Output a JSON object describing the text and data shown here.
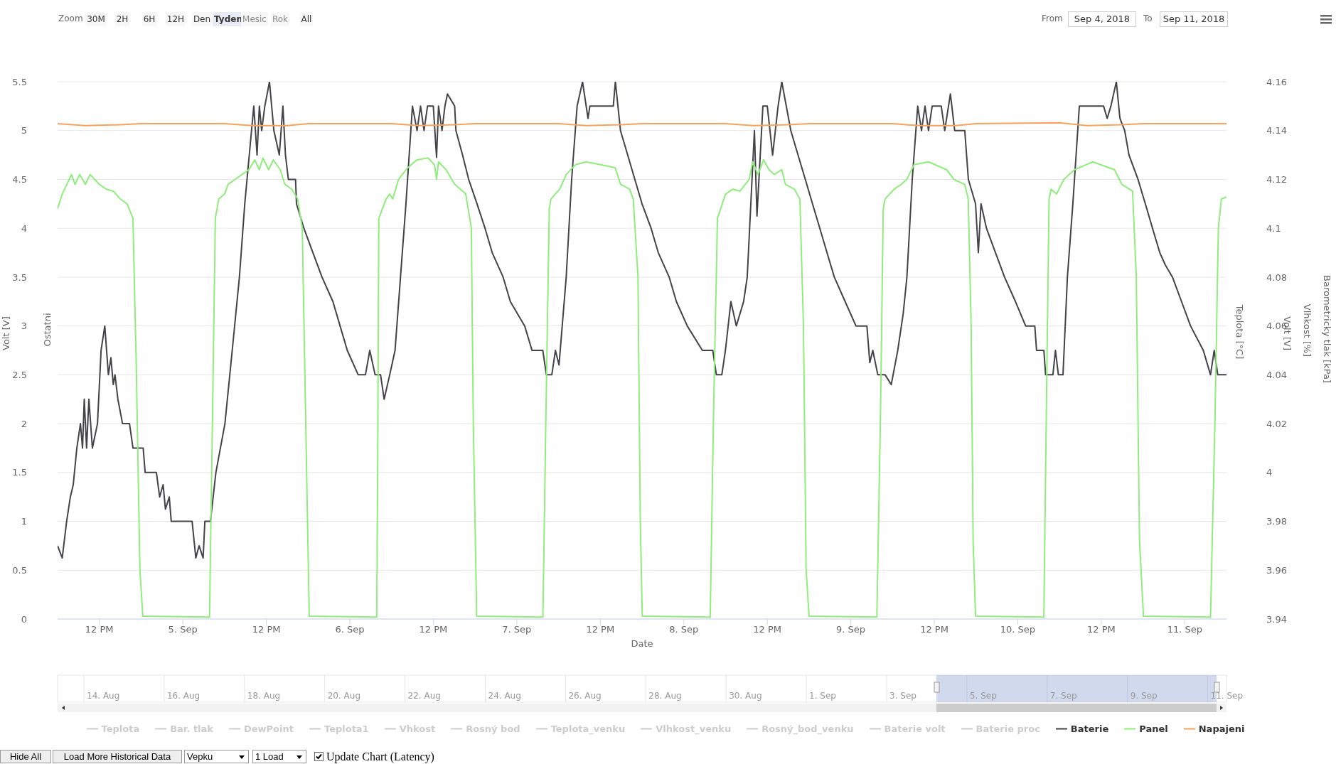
{
  "chart_data": {
    "type": "line",
    "xlabel": "Date",
    "ylabel": "Volt [V]",
    "y2label": "Volt [V]",
    "xlim": [
      "2018-09-04T06:00",
      "2018-09-11T06:00"
    ],
    "xticks": [
      {
        "value": "2018-09-04T12:00",
        "label": "12 PM"
      },
      {
        "value": "2018-09-05T00:00",
        "label": "5. Sep"
      },
      {
        "value": "2018-09-05T12:00",
        "label": "12 PM"
      },
      {
        "value": "2018-09-06T00:00",
        "label": "6. Sep"
      },
      {
        "value": "2018-09-06T12:00",
        "label": "12 PM"
      },
      {
        "value": "2018-09-07T00:00",
        "label": "7. Sep"
      },
      {
        "value": "2018-09-07T12:00",
        "label": "12 PM"
      },
      {
        "value": "2018-09-08T00:00",
        "label": "8. Sep"
      },
      {
        "value": "2018-09-08T12:00",
        "label": "12 PM"
      },
      {
        "value": "2018-09-09T00:00",
        "label": "9. Sep"
      },
      {
        "value": "2018-09-09T12:00",
        "label": "12 PM"
      },
      {
        "value": "2018-09-10T00:00",
        "label": "10. Sep"
      },
      {
        "value": "2018-09-10T12:00",
        "label": "12 PM"
      },
      {
        "value": "2018-09-11T00:00",
        "label": "11. Sep"
      }
    ],
    "ylim": [
      0,
      5.5
    ],
    "yticks": [
      0,
      0.5,
      1,
      1.5,
      2,
      2.5,
      3,
      3.5,
      4,
      4.5,
      5,
      5.5
    ],
    "y2lim": [
      3.94,
      4.16
    ],
    "y2ticks": [
      3.94,
      3.96,
      3.98,
      4,
      4.02,
      4.04,
      4.06,
      4.08,
      4.1,
      4.12,
      4.14,
      4.16
    ],
    "grid": "y",
    "legend": "bottom",
    "marker": "none",
    "annotations": [
      "Ostatni",
      "Teplota [°C]",
      "Vlhkost [%]",
      "Barometricky tlak [kPa]",
      "Zoom",
      "30M",
      "2H",
      "6H",
      "12H",
      "Den",
      "Tyden",
      "Mesic",
      "Rok",
      "All",
      "From",
      "Sep 4, 2018",
      "To",
      "Sep 11, 2018",
      "14. Aug",
      "16. Aug",
      "18. Aug",
      "20. Aug",
      "22. Aug",
      "24. Aug",
      "26. Aug",
      "28. Aug",
      "30. Aug",
      "1. Sep",
      "3. Sep",
      "5. Sep",
      "7. Sep",
      "9. Sep",
      "11. Sep",
      "Hide All",
      "Load More Historical Data",
      "Vepku",
      "1 Load",
      "Update Chart (Latency)"
    ],
    "series": [
      {
        "name": "Teplota",
        "color": "#cccccc"
      },
      {
        "name": "Bar. tlak",
        "color": "#cccccc"
      },
      {
        "name": "DewPoint",
        "color": "#cccccc"
      },
      {
        "name": "Teplota1",
        "color": "#cccccc"
      },
      {
        "name": "Vhkost",
        "color": "#cccccc"
      },
      {
        "name": "Rosný bod",
        "color": "#cccccc"
      },
      {
        "name": "Teplota_venku",
        "color": "#cccccc"
      },
      {
        "name": "Vlhkost_venku",
        "color": "#cccccc"
      },
      {
        "name": "Rosný_bod_venku",
        "color": "#cccccc"
      },
      {
        "name": "Baterie volt",
        "color": "#cccccc"
      },
      {
        "name": "Baterie proc",
        "color": "#cccccc"
      },
      {
        "name": "Baterie",
        "color": "#434348",
        "axis": "y2",
        "x": [
          "2018-09-04T06:00",
          "2018-09-04T06:40",
          "2018-09-04T07:18",
          "2018-09-04T07:50",
          "2018-09-04T08:15",
          "2018-09-04T08:46",
          "2018-09-04T09:17",
          "2018-09-04T09:35",
          "2018-09-04T09:50",
          "2018-09-04T10:10",
          "2018-09-04T10:30",
          "2018-09-04T11:00",
          "2018-09-04T11:44",
          "2018-09-04T12:15",
          "2018-09-04T12:47",
          "2018-09-04T13:18",
          "2018-09-04T13:40",
          "2018-09-04T14:00",
          "2018-09-04T14:15",
          "2018-09-04T14:40",
          "2018-09-04T15:20",
          "2018-09-04T16:20",
          "2018-09-04T16:50",
          "2018-09-04T18:18",
          "2018-09-04T18:35",
          "2018-09-04T20:12",
          "2018-09-04T20:40",
          "2018-09-04T21:10",
          "2018-09-04T21:30",
          "2018-09-04T22:03",
          "2018-09-04T22:20",
          "2018-09-05T01:20",
          "2018-09-05T01:52",
          "2018-09-05T02:20",
          "2018-09-05T02:55",
          "2018-09-05T03:10",
          "2018-09-05T03:58",
          "2018-09-05T04:45",
          "2018-09-05T06:03",
          "2018-09-05T07:06",
          "2018-09-05T08:08",
          "2018-09-05T08:54",
          "2018-09-05T09:31",
          "2018-09-05T10:12",
          "2018-09-05T10:40",
          "2018-09-05T11:00",
          "2018-09-05T11:20",
          "2018-09-05T11:47",
          "2018-09-05T12:27",
          "2018-09-05T13:05",
          "2018-09-05T13:52",
          "2018-09-05T14:23",
          "2018-09-05T14:45",
          "2018-09-05T15:10",
          "2018-09-05T16:12",
          "2018-09-05T16:20",
          "2018-09-05T17:24",
          "2018-09-05T18:42",
          "2018-09-05T20:00",
          "2018-09-05T21:34",
          "2018-09-05T22:36",
          "2018-09-05T23:38",
          "2018-09-06T01:12",
          "2018-09-06T02:15",
          "2018-09-06T02:52",
          "2018-09-06T03:38",
          "2018-09-06T04:25",
          "2018-09-06T04:56",
          "2018-09-06T05:44",
          "2018-09-06T06:30",
          "2018-09-06T07:17",
          "2018-09-06T08:04",
          "2018-09-06T09:00",
          "2018-09-06T09:40",
          "2018-09-06T10:10",
          "2018-09-06T10:40",
          "2018-09-06T11:10",
          "2018-09-06T12:00",
          "2018-09-06T12:28",
          "2018-09-06T12:45",
          "2018-09-06T13:15",
          "2018-09-06T13:40",
          "2018-09-06T14:02",
          "2018-09-06T15:04",
          "2018-09-06T15:15",
          "2018-09-06T16:12",
          "2018-09-06T17:05",
          "2018-09-06T18:17",
          "2018-09-06T19:26",
          "2018-09-06T20:28",
          "2018-09-06T22:02",
          "2018-09-06T23:04",
          "2018-09-07T01:08",
          "2018-09-07T02:11",
          "2018-09-07T03:44",
          "2018-09-07T04:15",
          "2018-09-07T05:02",
          "2018-09-07T05:33",
          "2018-09-07T06:04",
          "2018-09-07T07:06",
          "2018-09-07T07:53",
          "2018-09-07T08:40",
          "2018-09-07T09:27",
          "2018-09-07T10:14",
          "2018-09-07T10:30",
          "2018-09-07T13:52",
          "2018-09-07T14:10",
          "2018-09-07T14:54",
          "2018-09-07T15:56",
          "2018-09-07T16:58",
          "2018-09-07T18:00",
          "2018-09-07T19:18",
          "2018-09-07T20:20",
          "2018-09-07T21:54",
          "2018-09-07T22:56",
          "2018-09-08T00:30",
          "2018-09-08T02:40",
          "2018-09-08T04:10",
          "2018-09-08T04:41",
          "2018-09-08T05:28",
          "2018-09-08T05:59",
          "2018-09-08T06:46",
          "2018-09-08T07:33",
          "2018-09-08T08:36",
          "2018-09-08T09:07",
          "2018-09-08T09:38",
          "2018-09-08T10:09",
          "2018-09-08T10:31",
          "2018-09-08T11:22",
          "2018-09-08T12:00",
          "2018-09-08T12:46",
          "2018-09-08T13:33",
          "2018-09-08T14:05",
          "2018-09-08T15:23",
          "2018-09-08T16:25",
          "2018-09-08T17:28",
          "2018-09-08T18:30",
          "2018-09-08T19:33",
          "2018-09-08T20:35",
          "2018-09-08T21:38",
          "2018-09-08T23:11",
          "2018-09-09T00:45",
          "2018-09-09T02:19",
          "2018-09-09T02:44",
          "2018-09-09T03:10",
          "2018-09-09T03:53",
          "2018-09-09T04:56",
          "2018-09-09T05:49",
          "2018-09-09T06:45",
          "2018-09-09T07:32",
          "2018-09-09T08:04",
          "2018-09-09T08:50",
          "2018-09-09T09:37",
          "2018-09-09T10:10",
          "2018-09-09T10:40",
          "2018-09-09T11:10",
          "2018-09-09T11:42",
          "2018-09-09T13:00",
          "2018-09-09T13:30",
          "2018-09-09T14:19",
          "2018-09-09T14:56",
          "2018-09-09T16:23",
          "2018-09-09T16:54",
          "2018-09-09T17:56",
          "2018-09-09T18:20",
          "2018-09-09T18:43",
          "2018-09-09T19:30",
          "2018-09-09T20:48",
          "2018-09-09T22:06",
          "2018-09-09T23:40",
          "2018-09-10T01:08",
          "2018-09-10T02:27",
          "2018-09-10T02:42",
          "2018-09-10T03:45",
          "2018-09-10T04:00",
          "2018-09-10T05:03",
          "2018-09-10T05:25",
          "2018-09-10T05:50",
          "2018-09-10T06:30",
          "2018-09-10T07:08",
          "2018-09-10T07:55",
          "2018-09-10T08:51",
          "2018-09-10T12:20",
          "2018-09-10T12:51",
          "2018-09-10T13:23",
          "2018-09-10T14:10",
          "2018-09-10T14:41",
          "2018-09-10T15:22",
          "2018-09-10T15:59",
          "2018-09-10T17:17",
          "2018-09-10T18:20",
          "2018-09-10T19:22",
          "2018-09-10T20:25",
          "2018-09-10T21:12",
          "2018-09-10T22:14",
          "2018-09-10T23:32",
          "2018-09-11T00:50",
          "2018-09-11T02:40",
          "2018-09-11T03:42",
          "2018-09-11T04:14",
          "2018-09-11T04:45",
          "2018-09-11T06:00"
        ],
        "values": [
          3.97,
          3.965,
          3.98,
          3.99,
          3.995,
          4.01,
          4.02,
          4.01,
          4.03,
          4.01,
          4.03,
          4.01,
          4.02,
          4.05,
          4.06,
          4.04,
          4.047,
          4.036,
          4.04,
          4.03,
          4.02,
          4.02,
          4.01,
          4.01,
          4.0,
          4.0,
          3.99,
          3.995,
          3.985,
          3.99,
          3.98,
          3.98,
          3.965,
          3.97,
          3.965,
          3.98,
          3.98,
          4.0,
          4.02,
          4.05,
          4.08,
          4.11,
          4.129,
          4.15,
          4.13,
          4.15,
          4.14,
          4.15,
          4.16,
          4.14,
          4.13,
          4.15,
          4.13,
          4.12,
          4.12,
          4.11,
          4.1,
          4.09,
          4.08,
          4.07,
          4.06,
          4.05,
          4.04,
          4.04,
          4.05,
          4.04,
          4.04,
          4.03,
          4.04,
          4.05,
          4.08,
          4.11,
          4.15,
          4.14,
          4.15,
          4.14,
          4.15,
          4.15,
          4.129,
          4.15,
          4.14,
          4.15,
          4.155,
          4.15,
          4.14,
          4.13,
          4.12,
          4.11,
          4.1,
          4.09,
          4.08,
          4.07,
          4.06,
          4.05,
          4.05,
          4.04,
          4.04,
          4.05,
          4.044,
          4.08,
          4.12,
          4.15,
          4.16,
          4.145,
          4.15,
          4.15,
          4.16,
          4.14,
          4.13,
          4.12,
          4.11,
          4.1,
          4.09,
          4.08,
          4.07,
          4.06,
          4.05,
          4.05,
          4.04,
          4.04,
          4.05,
          4.07,
          4.06,
          4.07,
          4.08,
          4.11,
          4.14,
          4.105,
          4.15,
          4.15,
          4.13,
          4.15,
          4.16,
          4.14,
          4.13,
          4.12,
          4.11,
          4.1,
          4.09,
          4.08,
          4.07,
          4.06,
          4.06,
          4.045,
          4.05,
          4.04,
          4.04,
          4.036,
          4.05,
          4.065,
          4.08,
          4.12,
          4.15,
          4.14,
          4.15,
          4.14,
          4.15,
          4.15,
          4.14,
          4.155,
          4.14,
          4.14,
          4.12,
          4.11,
          4.09,
          4.11,
          4.1,
          4.09,
          4.08,
          4.07,
          4.06,
          4.06,
          4.05,
          4.05,
          4.04,
          4.04,
          4.05,
          4.04,
          4.04,
          4.08,
          4.11,
          4.15,
          4.15,
          4.145,
          4.15,
          4.16,
          4.145,
          4.14,
          4.13,
          4.12,
          4.11,
          4.1,
          4.09,
          4.085,
          4.08,
          4.07,
          4.06,
          4.05,
          4.04,
          4.05,
          4.04,
          4.04
        ]
      },
      {
        "name": "Panel",
        "color": "#90ed7d",
        "x": [
          "2018-09-04T06:00",
          "2018-09-04T06:40",
          "2018-09-04T07:20",
          "2018-09-04T08:00",
          "2018-09-04T08:30",
          "2018-09-04T09:10",
          "2018-09-04T10:00",
          "2018-09-04T10:40",
          "2018-09-04T11:20",
          "2018-09-04T12:00",
          "2018-09-04T13:00",
          "2018-09-04T14:00",
          "2018-09-04T15:00",
          "2018-09-04T16:00",
          "2018-09-04T16:50",
          "2018-09-04T17:20",
          "2018-09-04T17:50",
          "2018-09-04T18:15",
          "2018-09-05T03:50",
          "2018-09-05T04:15",
          "2018-09-05T04:40",
          "2018-09-05T05:10",
          "2018-09-05T06:00",
          "2018-09-05T06:30",
          "2018-09-05T07:30",
          "2018-09-05T08:30",
          "2018-09-05T09:30",
          "2018-09-05T10:20",
          "2018-09-05T11:00",
          "2018-09-05T11:30",
          "2018-09-05T12:20",
          "2018-09-05T13:00",
          "2018-09-05T14:00",
          "2018-09-05T14:40",
          "2018-09-05T15:40",
          "2018-09-05T16:30",
          "2018-09-05T17:10",
          "2018-09-05T17:40",
          "2018-09-05T18:10",
          "2018-09-06T03:52",
          "2018-09-06T04:00",
          "2018-09-06T04:10",
          "2018-09-06T05:13",
          "2018-09-06T05:44",
          "2018-09-06T06:10",
          "2018-09-06T07:00",
          "2018-09-06T08:20",
          "2018-09-06T09:38",
          "2018-09-06T11:15",
          "2018-09-06T12:10",
          "2018-09-06T12:28",
          "2018-09-06T12:45",
          "2018-09-06T13:50",
          "2018-09-06T15:04",
          "2018-09-06T16:40",
          "2018-09-06T17:28",
          "2018-09-06T17:45",
          "2018-09-06T18:14",
          "2018-09-07T03:45",
          "2018-09-07T04:10",
          "2018-09-07T04:40",
          "2018-09-07T04:55",
          "2018-09-07T06:10",
          "2018-09-07T07:06",
          "2018-09-07T08:25",
          "2018-09-07T09:58",
          "2018-09-07T12:03",
          "2018-09-07T14:08",
          "2018-09-07T14:55",
          "2018-09-07T16:13",
          "2018-09-07T16:44",
          "2018-09-07T17:25",
          "2018-09-07T17:45",
          "2018-09-07T18:02",
          "2018-09-08T03:48",
          "2018-09-08T04:15",
          "2018-09-08T04:50",
          "2018-09-08T06:00",
          "2018-09-08T07:03",
          "2018-09-08T08:05",
          "2018-09-08T09:23",
          "2018-09-08T09:54",
          "2018-09-08T10:40",
          "2018-09-08T11:28",
          "2018-09-08T12:15",
          "2018-09-08T13:00",
          "2018-09-08T14:05",
          "2018-09-08T14:36",
          "2018-09-08T15:54",
          "2018-09-08T16:41",
          "2018-09-08T17:12",
          "2018-09-08T17:35",
          "2018-09-08T18:00",
          "2018-09-09T03:45",
          "2018-09-09T04:15",
          "2018-09-09T04:40",
          "2018-09-09T04:56",
          "2018-09-09T06:14",
          "2018-09-09T07:16",
          "2018-09-09T08:03",
          "2018-09-09T09:05",
          "2018-09-09T11:10",
          "2018-09-09T13:46",
          "2018-09-09T14:49",
          "2018-09-09T16:22",
          "2018-09-09T16:53",
          "2018-09-09T17:18",
          "2018-09-09T17:35",
          "2018-09-09T17:56",
          "2018-09-10T03:45",
          "2018-09-10T04:05",
          "2018-09-10T04:30",
          "2018-09-10T04:48",
          "2018-09-10T05:34",
          "2018-09-10T06:37",
          "2018-09-10T08:10",
          "2018-09-10T10:47",
          "2018-09-10T13:54",
          "2018-09-10T14:57",
          "2018-09-10T16:30",
          "2018-09-10T17:02",
          "2018-09-10T17:30",
          "2018-09-10T18:04",
          "2018-09-11T03:42",
          "2018-09-11T04:20",
          "2018-09-11T04:50",
          "2018-09-11T05:16",
          "2018-09-11T06:00"
        ],
        "values": [
          4.2,
          4.35,
          4.45,
          4.55,
          4.45,
          4.55,
          4.45,
          4.55,
          4.5,
          4.45,
          4.4,
          4.38,
          4.3,
          4.25,
          4.1,
          2.5,
          0.5,
          0.03,
          0.02,
          2.0,
          4.1,
          4.3,
          4.35,
          4.45,
          4.5,
          4.55,
          4.6,
          4.7,
          4.6,
          4.72,
          4.6,
          4.7,
          4.6,
          4.45,
          4.4,
          4.3,
          4.0,
          2.0,
          0.03,
          0.02,
          1.5,
          4.1,
          4.3,
          4.35,
          4.3,
          4.5,
          4.62,
          4.7,
          4.72,
          4.65,
          4.5,
          4.68,
          4.6,
          4.45,
          4.35,
          4.0,
          2.0,
          0.03,
          0.02,
          2.0,
          4.2,
          4.3,
          4.4,
          4.55,
          4.65,
          4.68,
          4.65,
          4.62,
          4.45,
          4.4,
          4.3,
          3.5,
          1.0,
          0.03,
          0.02,
          2.0,
          4.1,
          4.35,
          4.4,
          4.38,
          4.5,
          4.68,
          4.55,
          4.7,
          4.6,
          4.55,
          4.6,
          4.45,
          4.4,
          4.3,
          3.0,
          0.5,
          0.03,
          0.02,
          2.0,
          4.2,
          4.3,
          4.4,
          4.45,
          4.5,
          4.65,
          4.68,
          4.6,
          4.5,
          4.45,
          4.3,
          3.0,
          0.8,
          0.03,
          0.02,
          2.0,
          4.3,
          4.4,
          4.35,
          4.5,
          4.6,
          4.68,
          4.6,
          4.45,
          4.38,
          3.5,
          0.8,
          0.03,
          0.02,
          2.0,
          4.0,
          4.3,
          4.32
        ]
      },
      {
        "name": "Napajeni",
        "color": "#f7a35c",
        "x": [
          "2018-09-04T06:00",
          "2018-09-04T10:00",
          "2018-09-04T15:00",
          "2018-09-04T18:00",
          "2018-09-05T06:00",
          "2018-09-05T10:00",
          "2018-09-05T15:00",
          "2018-09-05T18:00",
          "2018-09-06T06:00",
          "2018-09-06T10:00",
          "2018-09-06T15:00",
          "2018-09-06T18:00",
          "2018-09-07T06:00",
          "2018-09-07T10:00",
          "2018-09-07T15:00",
          "2018-09-07T18:00",
          "2018-09-08T06:00",
          "2018-09-08T10:00",
          "2018-09-08T15:00",
          "2018-09-08T18:00",
          "2018-09-09T06:00",
          "2018-09-09T10:00",
          "2018-09-09T15:00",
          "2018-09-09T18:00",
          "2018-09-10T06:00",
          "2018-09-10T10:00",
          "2018-09-10T15:00",
          "2018-09-10T18:00",
          "2018-09-11T06:00"
        ],
        "values": [
          5.07,
          5.05,
          5.06,
          5.07,
          5.07,
          5.05,
          5.05,
          5.07,
          5.07,
          5.05,
          5.06,
          5.07,
          5.07,
          5.05,
          5.06,
          5.07,
          5.07,
          5.05,
          5.06,
          5.07,
          5.07,
          5.05,
          5.05,
          5.07,
          5.08,
          5.05,
          5.06,
          5.07,
          5.07
        ]
      }
    ]
  }
}
